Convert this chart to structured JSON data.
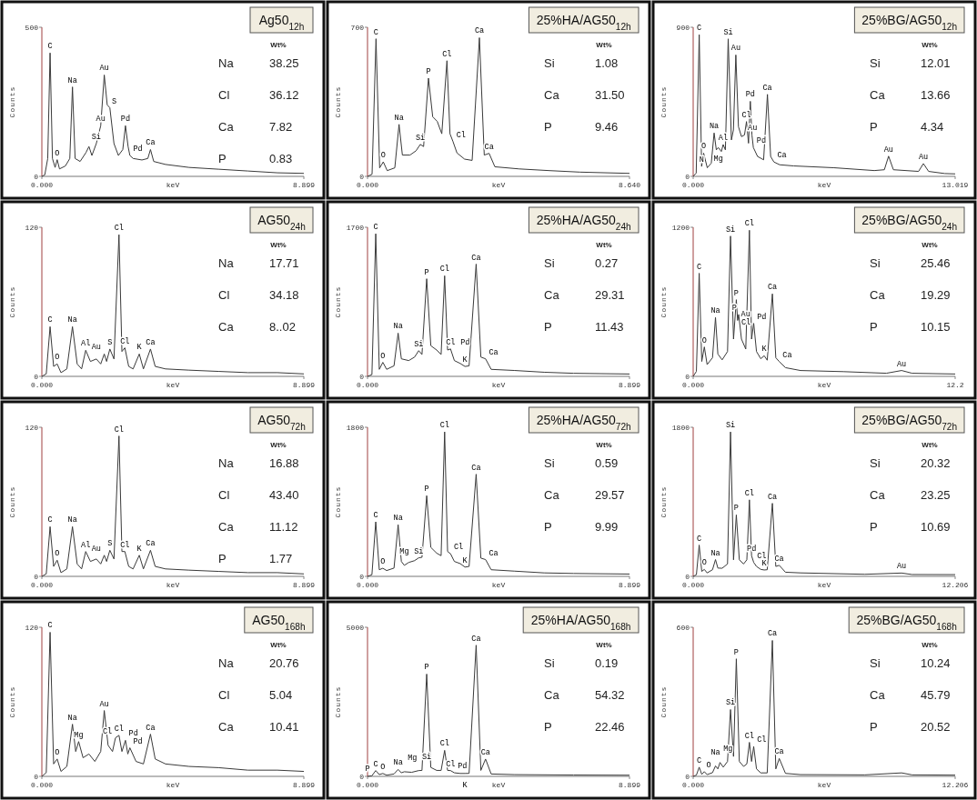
{
  "chart_data": [
    {
      "type": "line",
      "title": "Ag50$_{12h}$",
      "xlabel": "keV",
      "ylabel": "Counts",
      "color": "#3a3a3a",
      "xlim": [
        0,
        8.899
      ],
      "ylim": [
        0,
        500
      ],
      "xticks": [
        {
          "value": 0,
          "label": "0.000"
        },
        8.899
      ],
      "yticks": [
        0,
        500
      ],
      "x": [
        0,
        0.1,
        0.2,
        0.28,
        0.36,
        0.45,
        0.52,
        0.6,
        0.8,
        0.95,
        1.04,
        1.13,
        1.3,
        1.5,
        1.6,
        1.7,
        1.85,
        2.0,
        2.12,
        2.22,
        2.31,
        2.45,
        2.6,
        2.75,
        2.84,
        2.93,
        2.99,
        3.1,
        3.4,
        3.6,
        3.69,
        3.8,
        4.2,
        5,
        6,
        7,
        8,
        8.899
      ],
      "values": [
        0,
        5,
        60,
        414,
        60,
        30,
        56,
        25,
        35,
        60,
        300,
        60,
        50,
        80,
        100,
        70,
        110,
        170,
        340,
        240,
        230,
        110,
        70,
        90,
        170,
        100,
        70,
        60,
        55,
        60,
        90,
        50,
        40,
        30,
        24,
        18,
        12,
        10
      ],
      "annotations": [
        {
          "text": "C",
          "x": 0.28,
          "y": 414
        },
        {
          "text": "O",
          "x": 0.52,
          "y": 56
        },
        {
          "text": "Na",
          "x": 1.04,
          "y": 300
        },
        {
          "text": "Au",
          "x": 2.12,
          "y": 340
        },
        {
          "text": "Au",
          "x": 2.0,
          "y": 170
        },
        {
          "text": "Si",
          "x": 1.85,
          "y": 110
        },
        {
          "text": "S",
          "x": 2.31,
          "y": 230
        },
        {
          "text": "Pd",
          "x": 2.84,
          "y": 170
        },
        {
          "text": "Pd",
          "x": 2.99,
          "y": 70
        },
        {
          "text": "Ca",
          "x": 3.69,
          "y": 90
        },
        "Wt%",
        "Na",
        "38.25",
        "Cl",
        "36.12",
        "Ca",
        "7.82",
        "P",
        "0.83"
      ]
    },
    {
      "type": "line",
      "title": "25%HA/AG50$_{12h}$",
      "xlabel": "keV",
      "ylabel": "Counts",
      "color": "#3a3a3a",
      "xlim": [
        0,
        8.64
      ],
      "ylim": [
        0,
        700
      ],
      "xticks": [
        {
          "value": 0,
          "label": "0.000"
        },
        {
          "value": 8.64,
          "label": "8.640"
        }
      ],
      "yticks": [
        0,
        700
      ],
      "x": [
        0,
        0.15,
        0.28,
        0.4,
        0.52,
        0.65,
        0.9,
        1.04,
        1.15,
        1.4,
        1.6,
        1.74,
        1.85,
        2.01,
        2.15,
        2.3,
        2.45,
        2.62,
        2.72,
        2.82,
        2.95,
        3.2,
        3.45,
        3.69,
        3.85,
        4.01,
        4.2,
        5,
        6,
        7,
        8.64
      ],
      "values": [
        0,
        10,
        646,
        40,
        68,
        27,
        40,
        244,
        100,
        100,
        120,
        150,
        140,
        461,
        280,
        258,
        200,
        543,
        200,
        163,
        110,
        81,
        75,
        651,
        100,
        108,
        45,
        35,
        27,
        20,
        14
      ],
      "annotations": [
        {
          "text": "C",
          "x": 0.28,
          "y": 646
        },
        {
          "text": "O",
          "x": 0.52,
          "y": 68
        },
        {
          "text": "Na",
          "x": 1.04,
          "y": 244
        },
        {
          "text": "Si",
          "x": 1.74,
          "y": 150
        },
        {
          "text": "P",
          "x": 2.01,
          "y": 461
        },
        {
          "text": "Cl",
          "x": 2.62,
          "y": 543
        },
        {
          "text": "Cl",
          "x": 2.82,
          "y": 163
        },
        {
          "text": "Ca",
          "x": 3.69,
          "y": 651
        },
        {
          "text": "Ca",
          "x": 4.01,
          "y": 108
        },
        "Wt%",
        "Si",
        "1.08",
        "Ca",
        "31.50",
        "P",
        "9.46"
      ]
    },
    {
      "type": "line",
      "title": "25%BG/AG50$_{12h}$",
      "xlabel": "keV",
      "ylabel": "Counts",
      "color": "#3a3a3a",
      "xlim": [
        0,
        13.019
      ],
      "ylim": [
        0,
        900
      ],
      "xticks": [
        {
          "value": 0,
          "label": "0.000"
        },
        13.019
      ],
      "yticks": [
        0,
        900
      ],
      "x": [
        0,
        0.15,
        0.3,
        0.42,
        0.52,
        0.7,
        0.9,
        1.04,
        1.15,
        1.25,
        1.4,
        1.49,
        1.6,
        1.74,
        1.9,
        2.0,
        2.12,
        2.25,
        2.4,
        2.55,
        2.65,
        2.75,
        2.84,
        2.92,
        2.99,
        3.2,
        3.5,
        3.69,
        3.85,
        4.01,
        4.3,
        5,
        7,
        9,
        9.5,
        9.71,
        9.95,
        11.2,
        11.44,
        11.7,
        12.5,
        13.019
      ],
      "values": [
        0,
        20,
        855,
        60,
        140,
        52,
        80,
        262,
        160,
        174,
        150,
        192,
        160,
        830,
        220,
        280,
        733,
        300,
        240,
        250,
        331,
        200,
        453,
        250,
        174,
        120,
        100,
        495,
        120,
        87,
        70,
        63,
        52,
        35,
        40,
        122,
        40,
        30,
        77,
        30,
        17,
        15
      ],
      "annotations": [
        {
          "text": "C",
          "x": 0.3,
          "y": 855
        },
        {
          "text": "O",
          "x": 0.52,
          "y": 140
        },
        {
          "text": "N",
          "x": 0.42,
          "y": 60
        },
        {
          "text": "Al",
          "x": 1.49,
          "y": 192
        },
        {
          "text": "Na",
          "x": 1.04,
          "y": 262
        },
        {
          "text": "Mg",
          "x": 1.25,
          "y": 174
        },
        {
          "text": "Si",
          "x": 1.74,
          "y": 830
        },
        {
          "text": "Au",
          "x": 2.12,
          "y": 733
        },
        {
          "text": "Au",
          "x": 2.55,
          "y": 250
        },
        {
          "text": "Cl",
          "x": 2.65,
          "y": 331
        },
        {
          "text": "Pd",
          "x": 2.84,
          "y": 453
        },
        {
          "text": "Pd",
          "x": 2.99,
          "y": 174
        },
        {
          "text": "Ca",
          "x": 3.69,
          "y": 495
        },
        {
          "text": "Ca",
          "x": 4.01,
          "y": 87
        },
        {
          "text": "Au",
          "x": 9.71,
          "y": 122
        },
        {
          "text": "Au",
          "x": 11.44,
          "y": 77
        },
        "Wt%",
        "Si",
        "12.01",
        "Ca",
        "13.66",
        "P",
        "4.34"
      ]
    },
    {
      "type": "line",
      "title": "AG50$_{24h}$",
      "xlabel": "keV",
      "ylabel": "Counts",
      "color": "#3a3a3a",
      "xlim": [
        0,
        8.899
      ],
      "ylim": [
        0,
        120
      ],
      "xticks": [
        {
          "value": 0,
          "label": "0.000"
        },
        8.899
      ],
      "yticks": [
        0,
        120
      ],
      "x": [
        0,
        0.15,
        0.28,
        0.4,
        0.52,
        0.65,
        0.85,
        1.04,
        1.2,
        1.35,
        1.49,
        1.65,
        1.85,
        2.0,
        2.12,
        2.2,
        2.31,
        2.45,
        2.62,
        2.72,
        2.82,
        2.95,
        3.1,
        3.31,
        3.45,
        3.69,
        3.85,
        4.2,
        5,
        6,
        7,
        8,
        8.899
      ],
      "values": [
        0,
        2,
        40,
        8,
        10,
        3,
        6,
        40,
        10,
        6,
        21,
        12,
        14,
        10,
        18,
        12,
        22,
        14,
        114,
        20,
        23,
        8,
        6,
        18,
        6,
        22,
        8,
        6,
        5,
        4,
        3,
        3,
        2
      ],
      "annotations": [
        {
          "text": "C",
          "x": 0.28,
          "y": 40
        },
        {
          "text": "O",
          "x": 0.52,
          "y": 10
        },
        {
          "text": "Na",
          "x": 1.04,
          "y": 40
        },
        {
          "text": "Al",
          "x": 1.49,
          "y": 21
        },
        {
          "text": "Au",
          "x": 2.12,
          "y": 18
        },
        {
          "text": "S",
          "x": 2.31,
          "y": 22
        },
        {
          "text": "Cl",
          "x": 2.62,
          "y": 114
        },
        {
          "text": "Cl",
          "x": 2.82,
          "y": 23
        },
        {
          "text": "K",
          "x": 3.31,
          "y": 18
        },
        {
          "text": "Ca",
          "x": 3.69,
          "y": 22
        },
        "Wt%",
        "Na",
        "17.71",
        "Cl",
        "34.18",
        "Ca",
        "8..02"
      ]
    },
    {
      "type": "line",
      "title": "25%HA/AG50$_{24h}$",
      "xlabel": "keV",
      "ylabel": "Counts",
      "color": "#3a3a3a",
      "xlim": [
        0,
        8.899
      ],
      "ylim": [
        0,
        1700
      ],
      "xticks": [
        {
          "value": 0,
          "label": "0.000"
        },
        8.899
      ],
      "yticks": [
        0,
        1700
      ],
      "x": [
        0,
        0.15,
        0.28,
        0.4,
        0.52,
        0.65,
        0.9,
        1.04,
        1.15,
        1.4,
        1.6,
        1.74,
        1.85,
        2.01,
        2.15,
        2.35,
        2.5,
        2.62,
        2.72,
        2.82,
        2.95,
        3.15,
        3.31,
        3.45,
        3.69,
        3.85,
        4.01,
        4.2,
        5,
        6,
        7,
        8.899
      ],
      "values": [
        0,
        20,
        1626,
        80,
        160,
        80,
        120,
        493,
        200,
        180,
        220,
        293,
        250,
        1113,
        350,
        300,
        250,
        1147,
        300,
        313,
        180,
        147,
        113,
        120,
        1280,
        220,
        200,
        80,
        67,
        47,
        35,
        27
      ],
      "annotations": [
        {
          "text": "C",
          "x": 0.28,
          "y": 1626
        },
        {
          "text": "O",
          "x": 0.52,
          "y": 160
        },
        {
          "text": "Na",
          "x": 1.04,
          "y": 493
        },
        {
          "text": "Si",
          "x": 1.74,
          "y": 293
        },
        {
          "text": "P",
          "x": 2.01,
          "y": 1113
        },
        {
          "text": "Cl",
          "x": 2.62,
          "y": 1147
        },
        {
          "text": "Cl",
          "x": 2.82,
          "y": 313
        },
        {
          "text": "Pd",
          "x": 2.84,
          "y": 313
        },
        {
          "text": "K",
          "x": 3.31,
          "y": 113
        },
        {
          "text": "Ca",
          "x": 3.69,
          "y": 1280
        },
        {
          "text": "Ca",
          "x": 4.01,
          "y": 200
        },
        "Wt%",
        "Si",
        "0.27",
        "Ca",
        "29.31",
        "P",
        "11.43"
      ]
    },
    {
      "type": "line",
      "title": "25%BG/AG50$_{24h}$",
      "xlabel": "keV",
      "ylabel": "Counts",
      "color": "#3a3a3a",
      "xlim": [
        0,
        12.206
      ],
      "ylim": [
        0,
        1200
      ],
      "xticks": [
        {
          "value": 0,
          "label": "0.000"
        },
        {
          "value": 12.206,
          "label": "12.2"
        }
      ],
      "yticks": [
        0,
        1200
      ],
      "x": [
        0,
        0.15,
        0.28,
        0.4,
        0.52,
        0.65,
        0.9,
        1.04,
        1.15,
        1.35,
        1.6,
        1.74,
        1.88,
        2.01,
        2.07,
        2.12,
        2.25,
        2.45,
        2.62,
        2.72,
        2.82,
        2.95,
        3.15,
        3.31,
        3.45,
        3.69,
        3.85,
        4.01,
        4.3,
        5,
        7,
        9,
        9.71,
        10.2,
        12.206
      ],
      "values": [
        0,
        40,
        830,
        120,
        237,
        95,
        150,
        474,
        180,
        133,
        200,
        1129,
        300,
        617,
        450,
        498,
        300,
        220,
        1176,
        300,
        427,
        200,
        142,
        166,
        130,
        664,
        150,
        119,
        70,
        47,
        38,
        25,
        47,
        25,
        19
      ],
      "annotations": [
        {
          "text": "C",
          "x": 0.28,
          "y": 830
        },
        {
          "text": "O",
          "x": 0.52,
          "y": 237
        },
        {
          "text": "Na",
          "x": 1.04,
          "y": 474
        },
        {
          "text": "Si",
          "x": 1.74,
          "y": 1129
        },
        {
          "text": "P",
          "x": 2.01,
          "y": 617
        },
        {
          "text": "Au",
          "x": 2.07,
          "y": 450
        },
        {
          "text": "P",
          "x": 2.12,
          "y": 498
        },
        {
          "text": "Cl",
          "x": 2.62,
          "y": 1176
        },
        {
          "text": "Pd",
          "x": 2.82,
          "y": 427
        },
        {
          "text": "Cl",
          "x": 2.82,
          "y": 427
        },
        {
          "text": "K",
          "x": 3.31,
          "y": 166
        },
        {
          "text": "Ca",
          "x": 3.69,
          "y": 664
        },
        {
          "text": "Ca",
          "x": 4.01,
          "y": 119
        },
        {
          "text": "Au",
          "x": 9.71,
          "y": 47
        },
        "Wt%",
        "Si",
        "25.46",
        "Ca",
        "19.29",
        "P",
        "10.15"
      ]
    },
    {
      "type": "line",
      "title": "AG50$_{72h}$",
      "xlabel": "keV",
      "ylabel": "Counts",
      "color": "#3a3a3a",
      "xlim": [
        0,
        8.899
      ],
      "ylim": [
        0,
        120
      ],
      "xticks": [
        {
          "value": 0,
          "label": "0.000"
        },
        8.899
      ],
      "yticks": [
        0,
        120
      ],
      "x": [
        0,
        0.15,
        0.28,
        0.4,
        0.52,
        0.65,
        0.85,
        1.04,
        1.2,
        1.35,
        1.49,
        1.65,
        1.85,
        2.0,
        2.12,
        2.2,
        2.31,
        2.45,
        2.62,
        2.72,
        2.82,
        2.95,
        3.1,
        3.31,
        3.45,
        3.69,
        3.85,
        4.2,
        5,
        6,
        7,
        8,
        8.899
      ],
      "values": [
        0,
        2,
        40,
        8,
        13,
        3,
        6,
        40,
        10,
        6,
        20,
        12,
        14,
        10,
        17,
        12,
        21,
        14,
        113,
        20,
        20,
        8,
        6,
        17,
        6,
        21,
        8,
        6,
        5,
        4,
        3,
        3,
        2
      ],
      "annotations": [
        {
          "text": "C",
          "x": 0.28,
          "y": 40
        },
        {
          "text": "O",
          "x": 0.52,
          "y": 13
        },
        {
          "text": "Na",
          "x": 1.04,
          "y": 40
        },
        {
          "text": "Al",
          "x": 1.49,
          "y": 20
        },
        {
          "text": "Au",
          "x": 2.12,
          "y": 17
        },
        {
          "text": "S",
          "x": 2.31,
          "y": 21
        },
        {
          "text": "Cl",
          "x": 2.62,
          "y": 113
        },
        {
          "text": "Cl",
          "x": 2.82,
          "y": 20
        },
        {
          "text": "K",
          "x": 3.31,
          "y": 17
        },
        {
          "text": "Ca",
          "x": 3.69,
          "y": 21
        },
        "Wt%",
        "Na",
        "16.88",
        "Cl",
        "43.40",
        "Ca",
        "11.12",
        "P",
        "1.77"
      ]
    },
    {
      "type": "line",
      "title": "25%HA/AG50$_{72h}$",
      "xlabel": "keV",
      "ylabel": "Counts",
      "color": "#3a3a3a",
      "xlim": [
        0,
        8.899
      ],
      "ylim": [
        0,
        1800
      ],
      "xticks": [
        {
          "value": 0,
          "label": "0.000"
        },
        8.899
      ],
      "yticks": [
        0,
        1800
      ],
      "x": [
        0,
        0.15,
        0.28,
        0.4,
        0.52,
        0.65,
        0.9,
        1.04,
        1.15,
        1.25,
        1.4,
        1.6,
        1.74,
        1.85,
        2.01,
        2.15,
        2.35,
        2.5,
        2.62,
        2.72,
        2.82,
        2.95,
        3.15,
        3.31,
        3.45,
        3.69,
        3.85,
        4.01,
        4.2,
        5,
        6,
        7,
        8.899
      ],
      "values": [
        0,
        20,
        658,
        80,
        98,
        70,
        100,
        623,
        180,
        133,
        168,
        190,
        224,
        230,
        974,
        350,
        280,
        250,
        1744,
        300,
        273,
        180,
        154,
        112,
        120,
        1233,
        220,
        203,
        80,
        63,
        42,
        35,
        28
      ],
      "annotations": [
        {
          "text": "C",
          "x": 0.28,
          "y": 658
        },
        {
          "text": "O",
          "x": 0.52,
          "y": 98
        },
        {
          "text": "Na",
          "x": 1.04,
          "y": 623
        },
        {
          "text": "Mg",
          "x": 1.25,
          "y": 133
        },
        {
          "text": "Si",
          "x": 1.74,
          "y": 224
        },
        {
          "text": "P",
          "x": 2.01,
          "y": 974
        },
        {
          "text": "Cl",
          "x": 2.62,
          "y": 1744
        },
        {
          "text": "Cl",
          "x": 2.82,
          "y": 273
        },
        {
          "text": "K",
          "x": 3.31,
          "y": 112
        },
        {
          "text": "Ca",
          "x": 3.69,
          "y": 1233
        },
        {
          "text": "Ca",
          "x": 4.01,
          "y": 203
        },
        "Wt%",
        "Si",
        "0.59",
        "Ca",
        "29.57",
        "P",
        "9.99"
      ]
    },
    {
      "type": "line",
      "title": "25%BG/AG50$_{72h}$",
      "xlabel": "keV",
      "ylabel": "Counts",
      "color": "#3a3a3a",
      "xlim": [
        0,
        12.206
      ],
      "ylim": [
        0,
        1800
      ],
      "xticks": [
        {
          "value": 0,
          "label": "0.000"
        },
        12.206
      ],
      "yticks": [
        0,
        1800
      ],
      "x": [
        0,
        0.15,
        0.28,
        0.4,
        0.52,
        0.65,
        0.9,
        1.04,
        1.15,
        1.35,
        1.6,
        1.74,
        1.88,
        2.01,
        2.15,
        2.35,
        2.5,
        2.62,
        2.72,
        2.82,
        2.95,
        3.15,
        3.31,
        3.45,
        3.69,
        3.85,
        4.01,
        4.3,
        5,
        8,
        9.71,
        10.2,
        12.206
      ],
      "values": [
        0,
        20,
        378,
        60,
        84,
        42,
        80,
        203,
        100,
        98,
        150,
        1744,
        200,
        742,
        200,
        150,
        200,
        924,
        250,
        168,
        120,
        84,
        77,
        80,
        882,
        120,
        133,
        50,
        42,
        25,
        40,
        22,
        21
      ],
      "annotations": [
        {
          "text": "C",
          "x": 0.28,
          "y": 378
        },
        {
          "text": "O",
          "x": 0.52,
          "y": 84
        },
        {
          "text": "Na",
          "x": 1.04,
          "y": 203
        },
        {
          "text": "Si",
          "x": 1.74,
          "y": 1744
        },
        {
          "text": "P",
          "x": 2.01,
          "y": 742
        },
        {
          "text": "Cl",
          "x": 2.62,
          "y": 924
        },
        {
          "text": "Pd",
          "x": 2.72,
          "y": 250
        },
        {
          "text": "Cl",
          "x": 2.82,
          "y": 168
        },
        {
          "text": "K",
          "x": 3.31,
          "y": 77
        },
        {
          "text": "Ca",
          "x": 3.69,
          "y": 882
        },
        {
          "text": "Ca",
          "x": 4.01,
          "y": 133
        },
        {
          "text": "Au",
          "x": 9.71,
          "y": 40
        },
        "Wt%",
        "Si",
        "20.32",
        "Ca",
        "23.25",
        "P",
        "10.69"
      ]
    },
    {
      "type": "line",
      "title": "AG50$_{168h}$",
      "xlabel": "keV",
      "ylabel": "Counts",
      "color": "#3a3a3a",
      "xlim": [
        0,
        8.899
      ],
      "ylim": [
        0,
        120
      ],
      "xticks": [
        {
          "value": 0,
          "label": "0.000"
        },
        8.899
      ],
      "yticks": [
        0,
        120
      ],
      "x": [
        0,
        0.15,
        0.28,
        0.4,
        0.52,
        0.65,
        0.85,
        1.04,
        1.15,
        1.25,
        1.4,
        1.6,
        1.8,
        2.0,
        2.12,
        2.25,
        2.4,
        2.5,
        2.62,
        2.72,
        2.84,
        2.92,
        2.99,
        3.2,
        3.45,
        3.69,
        3.85,
        4.2,
        5,
        6,
        7,
        8,
        8.899
      ],
      "values": [
        0,
        3,
        116,
        10,
        14,
        4,
        8,
        42,
        20,
        28,
        15,
        18,
        12,
        20,
        53,
        25,
        20,
        31,
        33,
        20,
        29,
        18,
        23,
        12,
        10,
        34,
        14,
        10,
        8,
        7,
        5,
        5,
        4
      ],
      "annotations": [
        {
          "text": "C",
          "x": 0.28,
          "y": 116
        },
        {
          "text": "O",
          "x": 0.52,
          "y": 14
        },
        {
          "text": "Na",
          "x": 1.04,
          "y": 42
        },
        {
          "text": "Mg",
          "x": 1.25,
          "y": 28
        },
        {
          "text": "Au",
          "x": 2.12,
          "y": 53
        },
        {
          "text": "Cl",
          "x": 2.5,
          "y": 31
        },
        {
          "text": "Cl",
          "x": 2.62,
          "y": 33
        },
        {
          "text": "Pd",
          "x": 2.84,
          "y": 29
        },
        {
          "text": "Pd",
          "x": 2.99,
          "y": 23
        },
        {
          "text": "Ca",
          "x": 3.69,
          "y": 34
        },
        "Wt%",
        "Na",
        "20.76",
        "Cl",
        "5.04",
        "Ca",
        "10.41"
      ]
    },
    {
      "type": "line",
      "title": "25%HA/AG50$_{168h}$",
      "xlabel": "keV",
      "ylabel": "Counts",
      "color": "#3a3a3a",
      "xlim": [
        0,
        8.899
      ],
      "ylim": [
        0,
        5000
      ],
      "xticks": [
        {
          "value": 0,
          "label": "0.000"
        },
        8.899
      ],
      "yticks": [
        0,
        5000
      ],
      "x": [
        0,
        0.15,
        0.28,
        0.4,
        0.52,
        0.65,
        0.9,
        1.04,
        1.15,
        1.25,
        1.5,
        1.74,
        1.85,
        2.01,
        2.15,
        2.35,
        2.5,
        2.62,
        2.72,
        2.82,
        2.95,
        3.15,
        3.31,
        3.45,
        3.69,
        3.85,
        4.01,
        4.2,
        5,
        7,
        8.899
      ],
      "values": [
        0,
        20,
        194,
        60,
        97,
        39,
        80,
        233,
        120,
        155,
        136,
        194,
        200,
        3430,
        300,
        200,
        200,
        872,
        200,
        194,
        120,
        97,
        97,
        100,
        4399,
        200,
        581,
        80,
        58,
        45,
        39
      ],
      "annotations": [
        {
          "text": "C",
          "x": 0.28,
          "y": 194
        },
        {
          "text": "P",
          "x": 0.15,
          "y": 20
        },
        {
          "text": "O",
          "x": 0.52,
          "y": 97
        },
        {
          "text": "Na",
          "x": 1.04,
          "y": 233
        },
        {
          "text": "Mg",
          "x": 1.25,
          "y": 155
        },
        {
          "text": "Si",
          "x": 1.74,
          "y": 194
        },
        {
          "text": "P",
          "x": 2.01,
          "y": 3430
        },
        {
          "text": "Cl",
          "x": 2.62,
          "y": 872
        },
        {
          "text": "Cl",
          "x": 2.82,
          "y": 194
        },
        {
          "text": "Pd",
          "x": 2.95,
          "y": 120
        },
        {
          "text": "K",
          "x": 3.31,
          "y": 97
        },
        {
          "text": "Ca",
          "x": 3.69,
          "y": 4399
        },
        {
          "text": "Ca",
          "x": 4.01,
          "y": 581
        },
        "Wt%",
        "Si",
        "0.19",
        "Ca",
        "54.32",
        "P",
        "22.46"
      ]
    },
    {
      "type": "line",
      "title": "25%BG/AG50$_{168h}$",
      "xlabel": "keV",
      "ylabel": "Counts",
      "color": "#3a3a3a",
      "xlim": [
        0,
        12.206
      ],
      "ylim": [
        0,
        600
      ],
      "xticks": [
        {
          "value": 0,
          "label": "0.000"
        },
        12.206
      ],
      "yticks": [
        0,
        600
      ],
      "x": [
        0,
        0.15,
        0.28,
        0.4,
        0.52,
        0.65,
        0.9,
        1.04,
        1.15,
        1.25,
        1.4,
        1.6,
        1.74,
        1.88,
        2.01,
        2.15,
        2.35,
        2.5,
        2.62,
        2.72,
        2.82,
        2.95,
        3.15,
        3.45,
        3.69,
        3.85,
        4.01,
        4.3,
        5,
        8,
        9.71,
        10.2,
        12.206
      ],
      "values": [
        0,
        5,
        37,
        8,
        19,
        7,
        15,
        42,
        30,
        56,
        37,
        60,
        269,
        80,
        473,
        60,
        40,
        50,
        137,
        60,
        120,
        30,
        14,
        14,
        547,
        30,
        72,
        12,
        7,
        6,
        14,
        6,
        5
      ],
      "annotations": [
        {
          "text": "C",
          "x": 0.28,
          "y": 37
        },
        {
          "text": "O",
          "x": 0.52,
          "y": 19
        },
        {
          "text": "Na",
          "x": 1.04,
          "y": 42
        },
        {
          "text": "Mg",
          "x": 1.25,
          "y": 56
        },
        {
          "text": "Si",
          "x": 1.74,
          "y": 269
        },
        {
          "text": "P",
          "x": 2.01,
          "y": 473
        },
        {
          "text": "Cl",
          "x": 2.62,
          "y": 137
        },
        {
          "text": "Cl",
          "x": 2.82,
          "y": 120
        },
        {
          "text": "Ca",
          "x": 3.69,
          "y": 547
        },
        {
          "text": "Ca",
          "x": 4.01,
          "y": 72
        },
        "Wt%",
        "Si",
        "10.24",
        "Ca",
        "45.79",
        "P",
        "20.52"
      ]
    }
  ]
}
